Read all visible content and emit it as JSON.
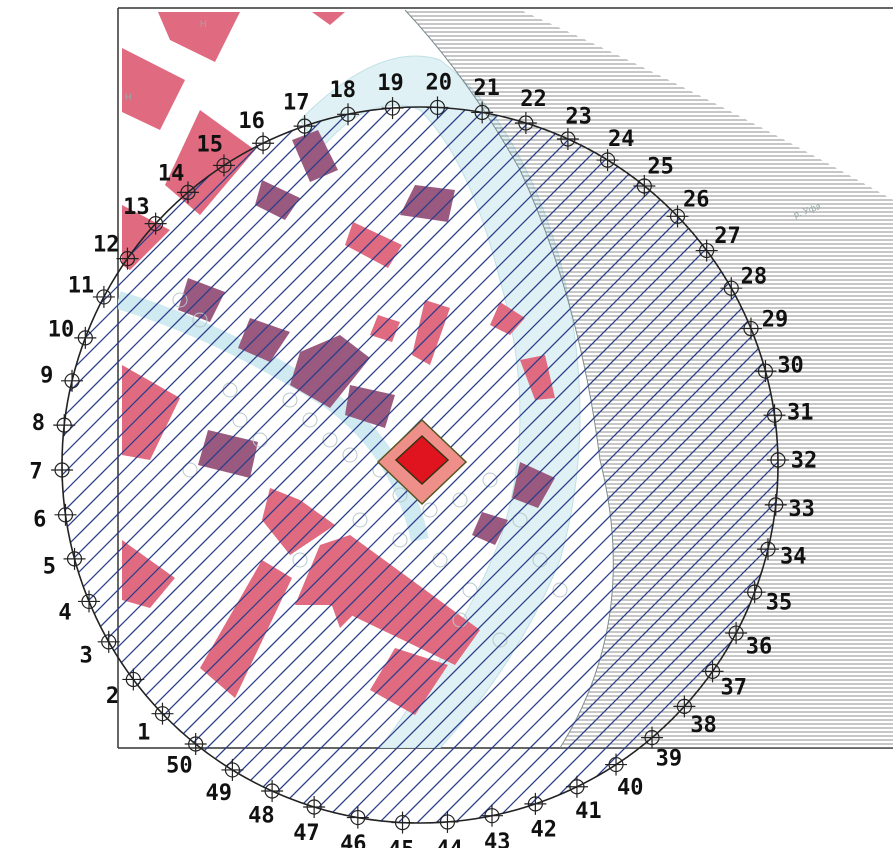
{
  "map": {
    "river_label": "р. Уфа",
    "building_tags": [
      "Н",
      "Н"
    ],
    "colors": {
      "building": "#e06a80",
      "building_dark": "#9a5a80",
      "center_outer": "#ef8f8a",
      "center_inner": "#e0141e",
      "circle_hatch": "#2a3e8a",
      "river_hatch": "#6a6a6a",
      "road": "#d7eef2"
    },
    "points": [
      "1",
      "2",
      "3",
      "4",
      "5",
      "6",
      "7",
      "8",
      "9",
      "10",
      "11",
      "12",
      "13",
      "14",
      "15",
      "16",
      "17",
      "18",
      "19",
      "20",
      "21",
      "22",
      "23",
      "24",
      "25",
      "26",
      "27",
      "28",
      "29",
      "30",
      "31",
      "32",
      "33",
      "34",
      "35",
      "36",
      "37",
      "38",
      "39",
      "40",
      "41",
      "42",
      "43",
      "44",
      "45",
      "46",
      "47",
      "48",
      "49",
      "50"
    ]
  }
}
